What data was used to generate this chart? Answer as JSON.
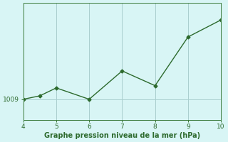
{
  "x": [
    4,
    4.5,
    5,
    6,
    7,
    8,
    9,
    10
  ],
  "y": [
    1009.0,
    1009.3,
    1010.0,
    1009.0,
    1011.5,
    1010.2,
    1014.5,
    1016.0
  ],
  "line_color": "#2d6a2d",
  "marker": "D",
  "marker_size": 2.5,
  "line_width": 1.0,
  "xlabel": "Graphe pression niveau de la mer (hPa)",
  "xlabel_color": "#2d6a2d",
  "xlabel_fontsize": 7,
  "xtick_color": "#2d6a2d",
  "ytick_color": "#2d6a2d",
  "ytick_label": "1009",
  "ytick_value": 1009,
  "xlim": [
    4,
    10
  ],
  "ylim": [
    1007.2,
    1017.5
  ],
  "background_color": "#d8f5f5",
  "grid_color": "#aacece",
  "xticks": [
    4,
    5,
    6,
    7,
    8,
    9,
    10
  ],
  "spine_color": "#3a7a3a"
}
